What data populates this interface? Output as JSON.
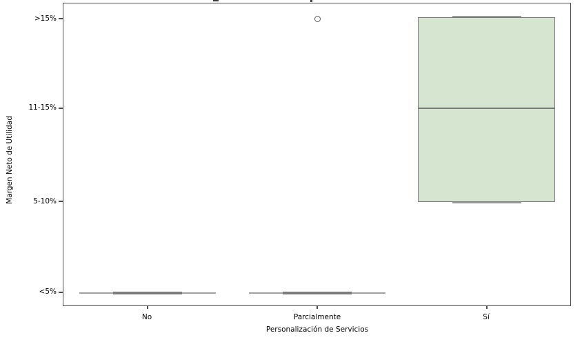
{
  "chart_data": {
    "type": "boxplot",
    "title_visible": false,
    "xlabel": "Personalización de Servicios",
    "ylabel": "Margen Neto de Utilidad",
    "categories": [
      "No",
      "Parcialmente",
      "Sí"
    ],
    "y_tick_labels": [
      "<5%",
      "5-10%",
      "11-15%",
      ">15%"
    ],
    "y_axis_type": "ordinal",
    "grid": false,
    "legend": false,
    "boxes": [
      {
        "category": "No",
        "q1": "<5%",
        "median": "<5%",
        "q3": "<5%",
        "whisker_low": "<5%",
        "whisker_high": "<5%",
        "outliers": [],
        "collapsed": true
      },
      {
        "category": "Parcialmente",
        "q1": "<5%",
        "median": "<5%",
        "q3": "<5%",
        "whisker_low": "<5%",
        "whisker_high": "<5%",
        "outliers": [
          ">15%"
        ],
        "collapsed": true
      },
      {
        "category": "Sí",
        "q1": "5-10%",
        "median": "11-15%",
        "q3": ">15%",
        "whisker_low": "5-10%",
        "whisker_high": ">15%",
        "outliers": [],
        "collapsed": false
      }
    ],
    "colors": {
      "box_fill": "#d6e5d0",
      "box_edge": "#787878",
      "whisker": "#9a9a9a",
      "spine": "#4b4b4b",
      "text": "#000000",
      "background": "#ffffff"
    }
  }
}
